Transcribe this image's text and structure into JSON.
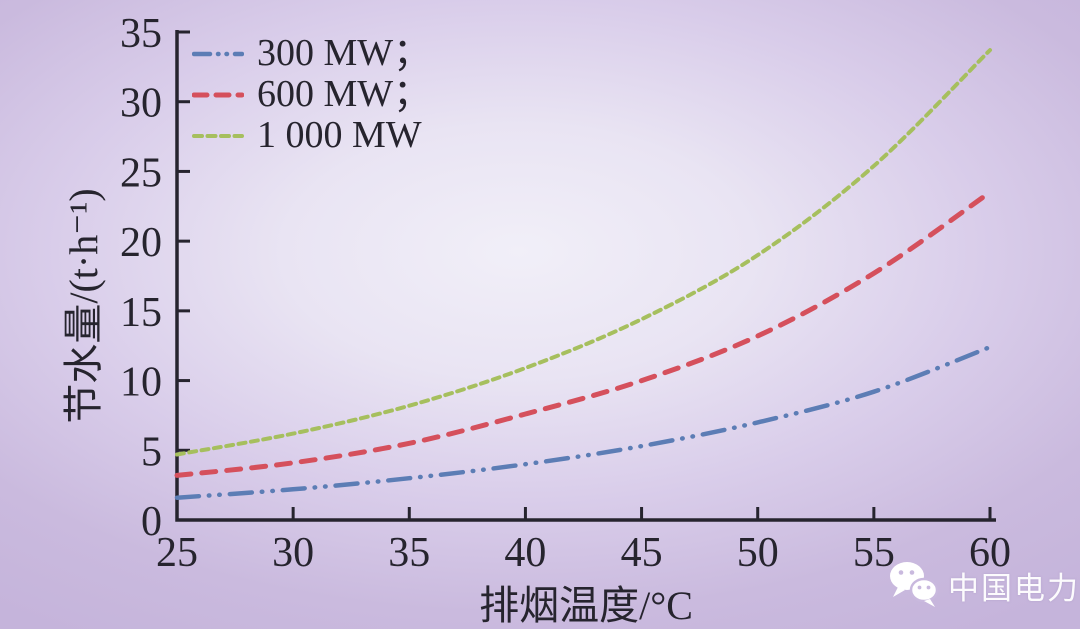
{
  "chart_data": {
    "type": "line",
    "title": "",
    "xlabel": "排烟温度/°C",
    "ylabel": "节水量/(t·h⁻¹)",
    "xlim": [
      25,
      60
    ],
    "ylim": [
      0,
      35
    ],
    "xticks": [
      25,
      30,
      35,
      40,
      45,
      50,
      55,
      60
    ],
    "yticks": [
      0,
      5,
      10,
      15,
      20,
      25,
      30,
      35
    ],
    "grid": false,
    "legend_position": "top-left",
    "x": [
      25,
      30,
      35,
      40,
      45,
      50,
      55,
      60
    ],
    "series": [
      {
        "name": "300 MW；",
        "color": "#5c7db5",
        "linestyle": "dash-dot-dot",
        "width": 4.5,
        "dash": [
          22,
          10,
          0.5,
          10,
          0.5,
          10
        ],
        "legend_dash": [
          16,
          8,
          0.5,
          8,
          0.5,
          8
        ],
        "values": [
          1.6,
          2.2,
          3.0,
          4.0,
          5.3,
          7.0,
          9.2,
          12.4
        ]
      },
      {
        "name": "600 MW；",
        "color": "#d5505c",
        "linestyle": "dashed",
        "width": 5,
        "dash": [
          14,
          11
        ],
        "legend_dash": [
          13,
          9
        ],
        "values": [
          3.2,
          4.1,
          5.5,
          7.6,
          10.0,
          13.2,
          17.7,
          23.5
        ]
      },
      {
        "name": "1 000 MW",
        "color": "#a6bf5e",
        "linestyle": "short-dash",
        "width": 4,
        "dash": [
          7,
          5.5
        ],
        "legend_dash": [
          8,
          5.5
        ],
        "values": [
          4.7,
          6.2,
          8.2,
          10.9,
          14.4,
          19.0,
          25.4,
          33.7
        ]
      }
    ],
    "axis_color": "#26242e"
  },
  "watermark": {
    "label": "中国电力",
    "icon": "wechat-icon",
    "color": "#ffffff"
  },
  "background": {
    "edge_color": "#c5b4db",
    "center_color": "#f1eff8"
  }
}
